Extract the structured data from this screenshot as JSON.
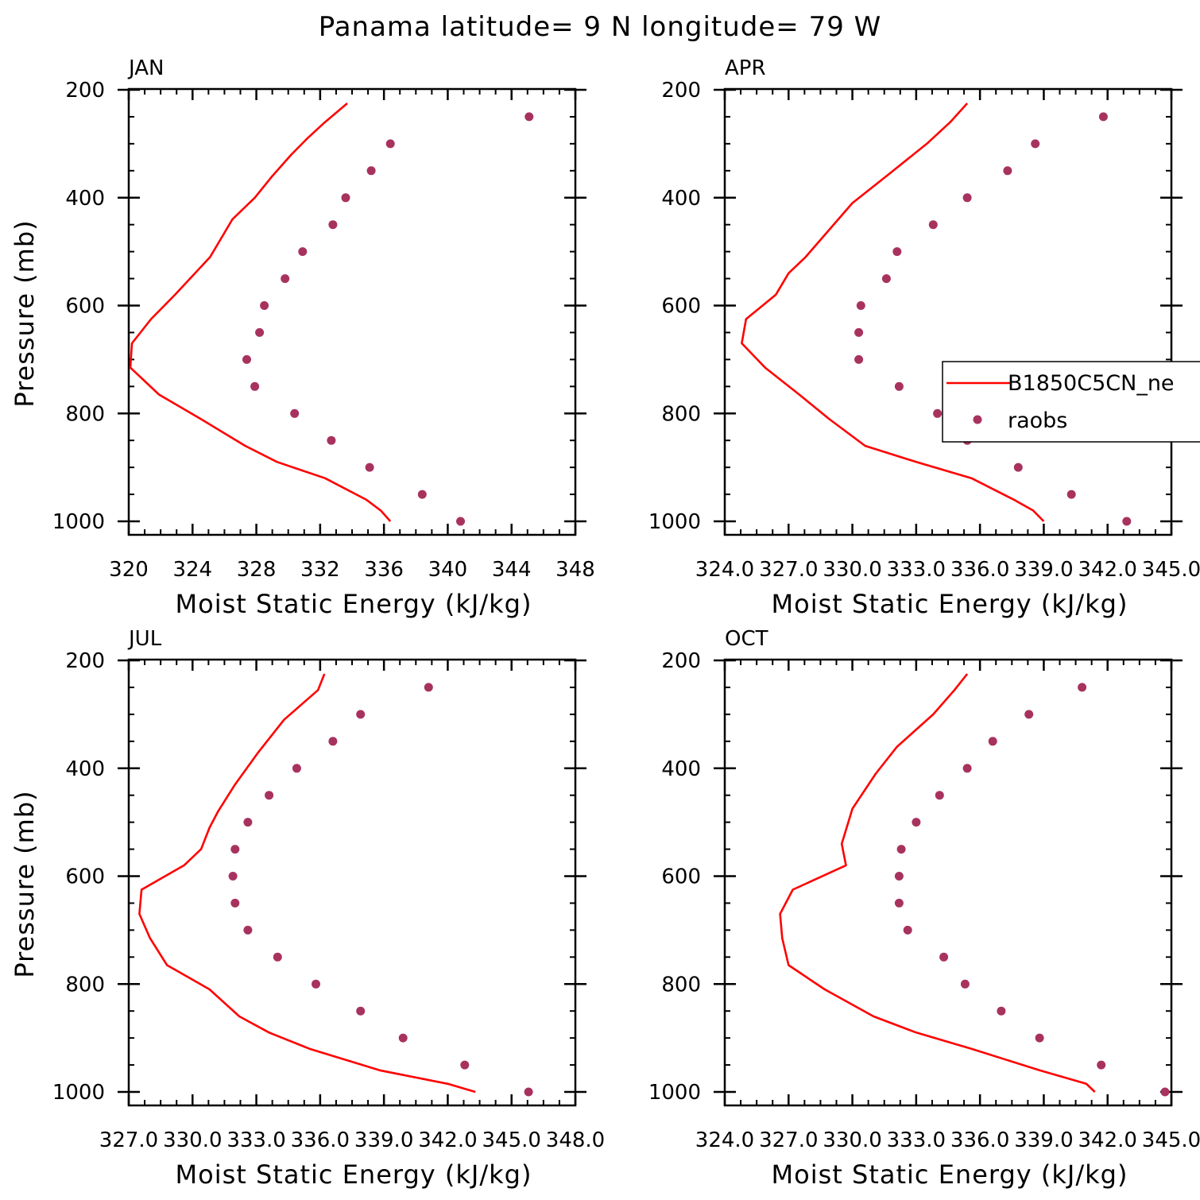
{
  "title": "Panama  latitude= 9 N longitude= 79 W",
  "colors": {
    "model": "#ff0000",
    "obs": "#a8325e",
    "axis": "#000000"
  },
  "legend": {
    "placement": "right of APR panel, overlapping edge",
    "entries": [
      {
        "label": "B1850C5CN_ne",
        "style": "line"
      },
      {
        "label": "raobs",
        "style": "dot"
      }
    ]
  },
  "chart_data": [
    {
      "type": "line",
      "panel": "JAN",
      "xlabel": "Moist Static Energy (kJ/kg)",
      "ylabel": "Pressure (mb)",
      "xlim": [
        320,
        348
      ],
      "ylim": [
        1000,
        200
      ],
      "y_axis_reversed": true,
      "xticks": [
        "320",
        "324",
        "328",
        "332",
        "336",
        "340",
        "344",
        "348"
      ],
      "yticks": [
        "200",
        "400",
        "600",
        "800",
        "1000"
      ],
      "series": [
        {
          "name": "B1850C5CN_ne",
          "kind": "line",
          "y": [
            225,
            240,
            260,
            290,
            320,
            360,
            400,
            440,
            510,
            580,
            625,
            670,
            715,
            765,
            810,
            860,
            890,
            920,
            960,
            980,
            1000
          ],
          "x": [
            333.7,
            333.1,
            332.3,
            331.2,
            330.2,
            329.0,
            327.9,
            326.5,
            325.1,
            322.9,
            321.4,
            320.2,
            320.1,
            321.9,
            324.5,
            327.3,
            329.3,
            332.3,
            334.9,
            335.8,
            336.4
          ]
        },
        {
          "name": "raobs",
          "kind": "scatter",
          "y": [
            250,
            300,
            350,
            400,
            450,
            500,
            550,
            600,
            650,
            700,
            750,
            800,
            850,
            900,
            950,
            1000
          ],
          "x": [
            345.1,
            336.4,
            335.2,
            333.6,
            332.8,
            330.9,
            329.8,
            328.5,
            328.2,
            327.4,
            327.9,
            330.4,
            332.7,
            335.1,
            338.4,
            340.8
          ]
        }
      ]
    },
    {
      "type": "line",
      "panel": "APR",
      "xlabel": "Moist Static Energy (kJ/kg)",
      "ylabel": "",
      "xlim": [
        324.0,
        345.0
      ],
      "ylim": [
        1000,
        200
      ],
      "y_axis_reversed": true,
      "xticks": [
        "324.0",
        "327.0",
        "330.0",
        "333.0",
        "336.0",
        "339.0",
        "342.0",
        "345.0"
      ],
      "yticks": [
        "200",
        "400",
        "600",
        "800",
        "1000"
      ],
      "series": [
        {
          "name": "B1850C5CN_ne",
          "kind": "line",
          "y": [
            225,
            260,
            300,
            360,
            410,
            460,
            510,
            540,
            580,
            625,
            670,
            715,
            765,
            810,
            860,
            890,
            920,
            960,
            980,
            1000
          ],
          "x": [
            335.4,
            334.6,
            333.5,
            331.6,
            330.0,
            328.9,
            327.8,
            327.0,
            326.4,
            325.0,
            324.8,
            325.9,
            327.5,
            328.9,
            330.6,
            333.0,
            335.6,
            337.6,
            338.5,
            339.0
          ]
        },
        {
          "name": "raobs",
          "kind": "scatter",
          "y": [
            250,
            300,
            350,
            400,
            450,
            500,
            550,
            600,
            650,
            700,
            750,
            800,
            850,
            900,
            950,
            1000
          ],
          "x": [
            341.8,
            338.6,
            337.3,
            335.4,
            333.8,
            332.1,
            331.6,
            330.4,
            330.3,
            330.3,
            332.2,
            334.0,
            335.4,
            337.8,
            340.3,
            342.9
          ]
        }
      ]
    },
    {
      "type": "line",
      "panel": "JUL",
      "xlabel": "Moist Static Energy (kJ/kg)",
      "ylabel": "Pressure (mb)",
      "xlim": [
        327.0,
        348.0
      ],
      "ylim": [
        1000,
        200
      ],
      "y_axis_reversed": true,
      "xticks": [
        "327.0",
        "330.0",
        "333.0",
        "336.0",
        "339.0",
        "342.0",
        "345.0",
        "348.0"
      ],
      "yticks": [
        "200",
        "400",
        "600",
        "800",
        "1000"
      ],
      "series": [
        {
          "name": "B1850C5CN_ne",
          "kind": "line",
          "y": [
            225,
            255,
            310,
            370,
            430,
            480,
            510,
            550,
            580,
            625,
            670,
            715,
            765,
            810,
            860,
            890,
            920,
            960,
            985,
            1000
          ],
          "x": [
            336.2,
            335.9,
            334.3,
            333.1,
            332.0,
            331.2,
            330.8,
            330.4,
            329.6,
            327.6,
            327.5,
            328.0,
            328.8,
            330.8,
            332.2,
            333.6,
            335.5,
            338.8,
            342.0,
            343.3
          ]
        },
        {
          "name": "raobs",
          "kind": "scatter",
          "y": [
            250,
            300,
            350,
            400,
            450,
            500,
            550,
            600,
            650,
            700,
            750,
            800,
            850,
            900,
            950,
            1000
          ],
          "x": [
            341.1,
            337.9,
            336.6,
            334.9,
            333.6,
            332.6,
            332.0,
            331.9,
            332.0,
            332.6,
            334.0,
            335.8,
            337.9,
            339.9,
            342.8,
            345.8
          ]
        }
      ]
    },
    {
      "type": "line",
      "panel": "OCT",
      "xlabel": "Moist Static Energy (kJ/kg)",
      "ylabel": "",
      "xlim": [
        324.0,
        345.0
      ],
      "ylim": [
        1000,
        200
      ],
      "y_axis_reversed": true,
      "xticks": [
        "324.0",
        "327.0",
        "330.0",
        "333.0",
        "336.0",
        "339.0",
        "342.0",
        "345.0"
      ],
      "yticks": [
        "200",
        "400",
        "600",
        "800",
        "1000"
      ],
      "series": [
        {
          "name": "B1850C5CN_ne",
          "kind": "line",
          "y": [
            225,
            255,
            300,
            360,
            410,
            475,
            540,
            580,
            625,
            670,
            715,
            765,
            810,
            860,
            890,
            920,
            960,
            985,
            1000
          ],
          "x": [
            335.4,
            334.8,
            333.8,
            332.1,
            331.1,
            330.0,
            329.5,
            329.7,
            327.2,
            326.6,
            326.7,
            327.0,
            328.7,
            331.0,
            333.0,
            335.6,
            338.8,
            341.0,
            341.4
          ]
        },
        {
          "name": "raobs",
          "kind": "scatter",
          "y": [
            250,
            300,
            350,
            400,
            450,
            500,
            550,
            600,
            650,
            700,
            750,
            800,
            850,
            900,
            950,
            1000
          ],
          "x": [
            340.8,
            338.3,
            336.6,
            335.4,
            334.1,
            333.0,
            332.3,
            332.2,
            332.2,
            332.6,
            334.3,
            335.3,
            337.0,
            338.8,
            341.7,
            344.7
          ]
        }
      ]
    }
  ]
}
